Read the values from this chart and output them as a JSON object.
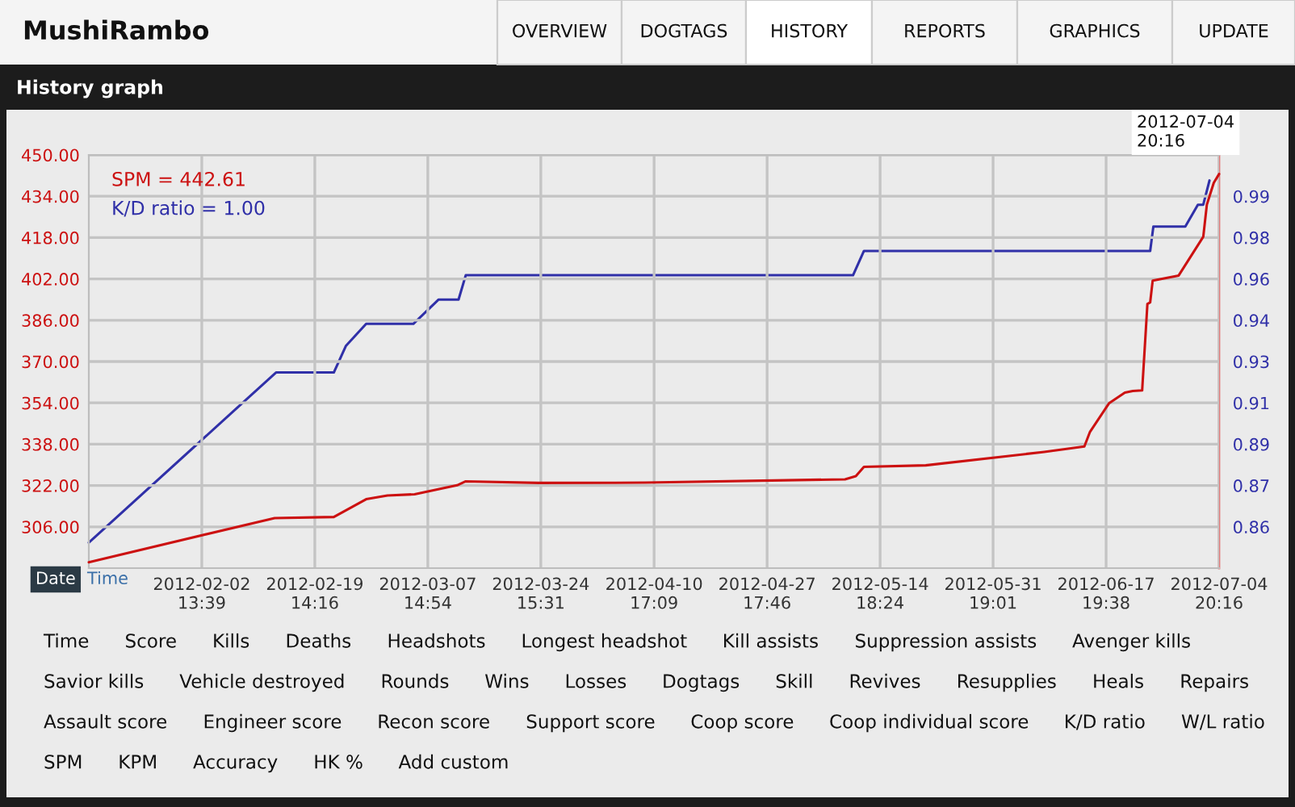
{
  "chart_data": {
    "type": "line",
    "title": "History graph",
    "series": [
      {
        "name": "SPM = 442.61",
        "color": "#cc1111",
        "x": [
          "2012-01-16T13:02",
          "2012-02-13T13:00",
          "2012-02-22T11:00",
          "2012-02-27T08:00",
          "2012-03-01T13:00",
          "2012-03-05T15:00",
          "2012-03-12T01:00",
          "2012-03-13T08:00",
          "2012-03-24T06:00",
          "2012-04-09T10:00",
          "2012-05-09T11:30",
          "2012-05-11T02:40",
          "2012-05-12T08:00",
          "2012-05-21T15:30",
          "2012-06-08T12:00",
          "2012-06-14T13:00",
          "2012-06-15T09:30",
          "2012-06-18T06:00",
          "2012-06-20T15:30",
          "2012-06-21T20:00",
          "2012-06-23T06:00",
          "2012-06-24T01:00",
          "2012-06-24T11:00",
          "2012-06-24T20:00",
          "2012-06-28T18:00",
          "2012-07-02T11:00",
          "2012-07-03T00:00",
          "2012-07-04T01:00",
          "2012-07-04T20:16"
        ],
        "values": [
          292.3,
          309.4,
          309.8,
          316.7,
          318.1,
          318.6,
          322.1,
          323.6,
          323.0,
          323.1,
          324.4,
          325.6,
          329.2,
          329.8,
          335.0,
          337.1,
          342.8,
          353.8,
          358.0,
          358.6,
          358.8,
          392.3,
          392.9,
          401.3,
          403.3,
          418.3,
          430.8,
          439.2,
          442.61
        ]
      },
      {
        "name": "K/D ratio = 1.00",
        "color": "#3030a8",
        "axis": "y2",
        "x": [
          "2012-01-16T13:02",
          "2012-02-13T18:00",
          "2012-02-22T11:00",
          "2012-02-24T07:00",
          "2012-02-27T08:00",
          "2012-03-05T10:30",
          "2012-03-09T06:00",
          "2012-03-12T06:00",
          "2012-03-13T08:00",
          "2012-05-10T16:30",
          "2012-05-12T08:00",
          "2012-06-24T11:00",
          "2012-06-24T22:30",
          "2012-06-29T18:00",
          "2012-07-01T15:30",
          "2012-07-02T11:00",
          "2012-07-03T09:30"
        ],
        "values": [
          0.851,
          0.921,
          0.921,
          0.932,
          0.941,
          0.941,
          0.951,
          0.951,
          0.961,
          0.961,
          0.971,
          0.971,
          0.981,
          0.981,
          0.99,
          0.99,
          1.0
        ]
      }
    ],
    "xlim": [
      "2012-01-16T13:02",
      "2012-07-04T20:16"
    ],
    "xticks": [
      {
        "value": "2012-02-02T13:39",
        "label": "2012-02-02\n13:39"
      },
      {
        "value": "2012-02-19T14:16",
        "label": "2012-02-19\n14:16"
      },
      {
        "value": "2012-03-07T14:54",
        "label": "2012-03-07\n14:54"
      },
      {
        "value": "2012-03-24T15:31",
        "label": "2012-03-24\n15:31"
      },
      {
        "value": "2012-04-10T17:09",
        "label": "2012-04-10\n17:09"
      },
      {
        "value": "2012-04-27T17:46",
        "label": "2012-04-27\n17:46"
      },
      {
        "value": "2012-05-14T18:24",
        "label": "2012-05-14\n18:24"
      },
      {
        "value": "2012-05-31T19:01",
        "label": "2012-05-31\n19:01"
      },
      {
        "value": "2012-06-17T19:38",
        "label": "2012-06-17\n19:38"
      },
      {
        "value": "2012-07-04T20:16",
        "label": "2012-07-04\n20:16"
      }
    ],
    "ylim": [
      290,
      450
    ],
    "yticks": [
      {
        "value": 306,
        "label": "306.00"
      },
      {
        "value": 322,
        "label": "322.00"
      },
      {
        "value": 338,
        "label": "338.00"
      },
      {
        "value": 354,
        "label": "354.00"
      },
      {
        "value": 370,
        "label": "370.00"
      },
      {
        "value": 386,
        "label": "386.00"
      },
      {
        "value": 402,
        "label": "402.00"
      },
      {
        "value": 418,
        "label": "418.00"
      },
      {
        "value": 434,
        "label": "434.00"
      },
      {
        "value": 450,
        "label": "450.00"
      }
    ],
    "y2lim": [
      0.8405,
      1.0105
    ],
    "y2ticks": [
      {
        "value": 0.8575,
        "label": "0.86"
      },
      {
        "value": 0.8745,
        "label": "0.87"
      },
      {
        "value": 0.8915,
        "label": "0.89"
      },
      {
        "value": 0.9085,
        "label": "0.91"
      },
      {
        "value": 0.9255,
        "label": "0.93"
      },
      {
        "value": 0.9425,
        "label": "0.94"
      },
      {
        "value": 0.9595,
        "label": "0.96"
      },
      {
        "value": 0.9765,
        "label": "0.98"
      },
      {
        "value": 0.9935,
        "label": "0.99"
      }
    ],
    "grid": true,
    "legend": "top left",
    "annotations": [
      "MushiRambo",
      "OVERVIEW",
      "DOGTAGS",
      "HISTORY",
      "REPORTS",
      "GRAPHICS",
      "UPDATE",
      "Date",
      "Time",
      "2012-07-04\n20:16",
      "Time",
      "Score",
      "Kills",
      "Deaths",
      "Headshots",
      "Longest headshot",
      "Kill assists",
      "Suppression assists",
      "Avenger kills",
      "Savior kills",
      "Vehicle destroyed",
      "Rounds",
      "Wins",
      "Losses",
      "Dogtags",
      "Skill",
      "Revives",
      "Resupplies",
      "Heals",
      "Repairs",
      "Assault score",
      "Engineer score",
      "Recon score",
      "Support score",
      "Coop score",
      "Coop individual score",
      "K/D ratio",
      "W/L ratio",
      "SPM",
      "KPM",
      "Accuracy",
      "HK %",
      "Add custom"
    ]
  }
}
